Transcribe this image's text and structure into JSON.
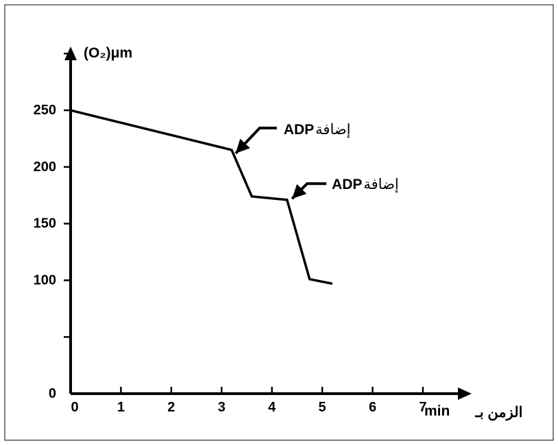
{
  "colors": {
    "background": "#ffffff",
    "frame": "#000000",
    "axis": "#000000",
    "series": "#000000"
  },
  "chart_data": {
    "type": "line",
    "title": "",
    "ylabel": "(O₂)μm",
    "xlabel_unit": "min",
    "xlabel_word": "الزمن بـ",
    "xlim": [
      0,
      7.9
    ],
    "ylim": [
      0,
      305
    ],
    "x_ticks": [
      0,
      1,
      2,
      3,
      4,
      5,
      6,
      7
    ],
    "y_ticks": [
      50,
      100,
      150,
      200,
      250,
      300
    ],
    "y_tick_labels": [
      {
        "value": 0,
        "label": "0"
      },
      {
        "value": 100,
        "label": "100"
      },
      {
        "value": 150,
        "label": "150"
      },
      {
        "value": 200,
        "label": "200"
      },
      {
        "value": 250,
        "label": "250"
      }
    ],
    "grid": false,
    "legend": "none",
    "series": [
      {
        "x": [
          0,
          3.2,
          3.6,
          4.3,
          4.75,
          5.2
        ],
        "y": [
          250,
          215,
          174,
          171,
          101,
          97
        ]
      }
    ],
    "annotations": [
      {
        "text_word": "إضافة",
        "text_code": "ADP",
        "x": 3.28,
        "y": 212
      },
      {
        "text_word": "إضافة",
        "text_code": "ADP",
        "x": 4.4,
        "y": 172
      }
    ]
  }
}
